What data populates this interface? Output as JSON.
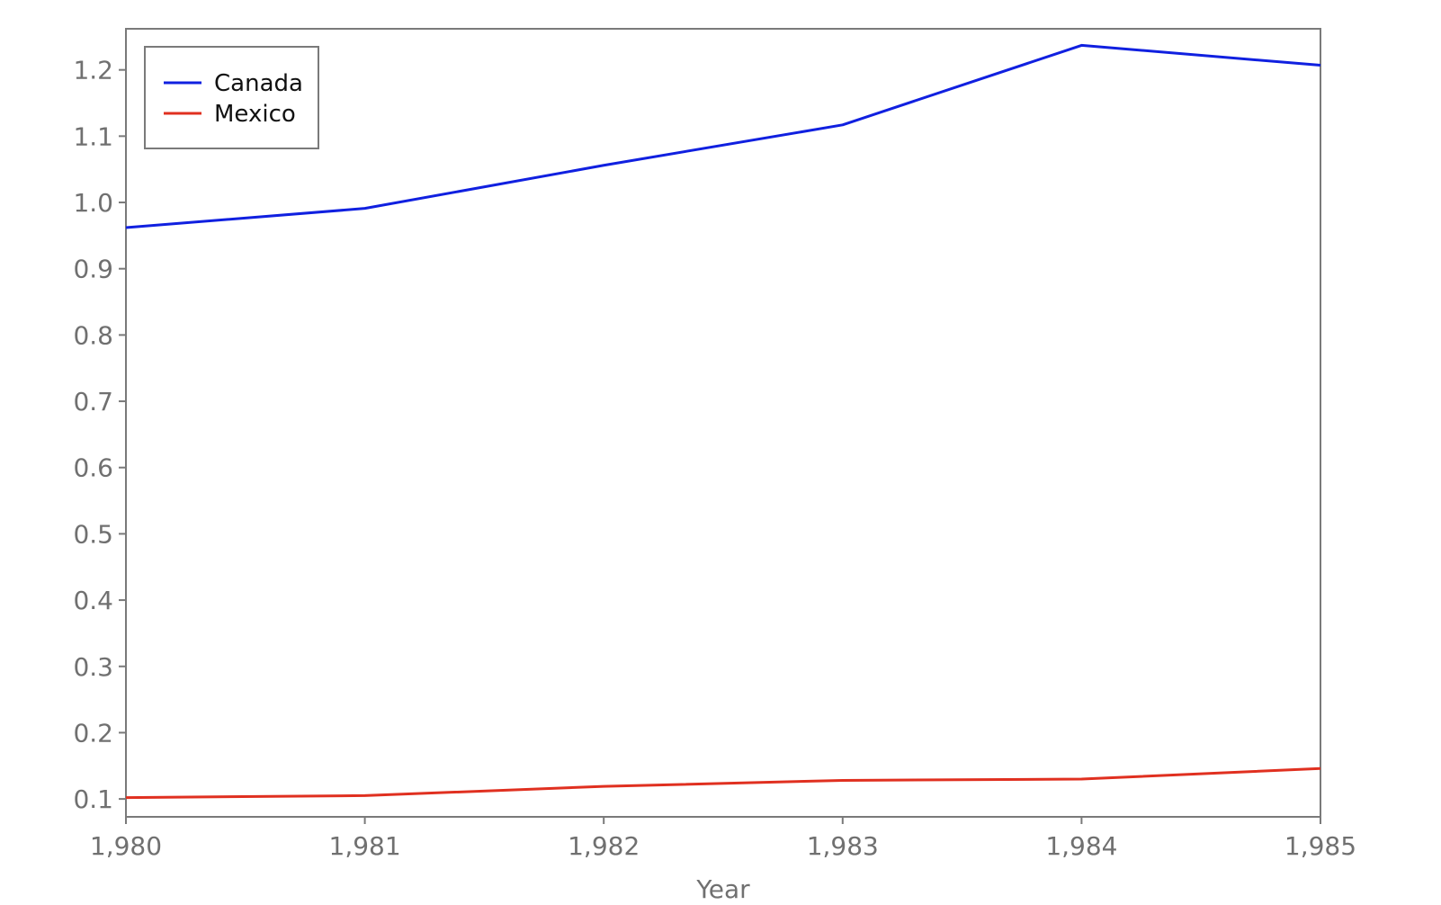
{
  "chart_data": {
    "type": "line",
    "title": "",
    "xlabel": "Year",
    "ylabel": "",
    "x": [
      1980,
      1981,
      1982,
      1983,
      1984,
      1985
    ],
    "x_tick_labels": [
      "1,980",
      "1,981",
      "1,982",
      "1,983",
      "1,984",
      "1,985"
    ],
    "xlim": [
      1980,
      1985
    ],
    "ylim": [
      0.073,
      1.262
    ],
    "y_ticks": [
      0.1,
      0.2,
      0.3,
      0.4,
      0.5,
      0.6,
      0.7,
      0.8,
      0.9,
      1.0,
      1.1,
      1.2
    ],
    "y_tick_labels": [
      "0.1",
      "0.2",
      "0.3",
      "0.4",
      "0.5",
      "0.6",
      "0.7",
      "0.8",
      "0.9",
      "1.0",
      "1.1",
      "1.2"
    ],
    "grid": false,
    "legend_position": "top-left",
    "series": [
      {
        "name": "Canada",
        "color": "#1020e0",
        "values": [
          0.962,
          0.991,
          1.056,
          1.117,
          1.237,
          1.207
        ]
      },
      {
        "name": "Mexico",
        "color": "#e03020",
        "values": [
          0.102,
          0.105,
          0.119,
          0.128,
          0.13,
          0.146
        ]
      }
    ]
  }
}
